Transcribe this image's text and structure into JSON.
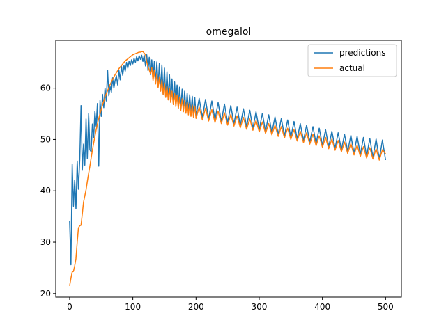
{
  "chart_data": {
    "type": "line",
    "title": "omegalol",
    "xlabel": "",
    "ylabel": "",
    "xlim": [
      -22,
      525
    ],
    "ylim": [
      19.3,
      69.3
    ],
    "x_ticks": [
      0,
      100,
      200,
      300,
      400,
      500
    ],
    "y_ticks": [
      20,
      30,
      40,
      50,
      60
    ],
    "grid": false,
    "legend_position": "top-right",
    "colors": {
      "predictions": "#1f77b4",
      "actual": "#ff7f0e"
    },
    "series": [
      {
        "name": "predictions",
        "color": "#1f77b4",
        "points": [
          [
            0,
            34.1
          ],
          [
            2,
            25.6
          ],
          [
            4,
            45.2
          ],
          [
            6,
            37.0
          ],
          [
            8,
            42.1
          ],
          [
            10,
            36.5
          ],
          [
            12,
            45.8
          ],
          [
            14,
            40.3
          ],
          [
            16,
            46.2
          ],
          [
            18,
            56.6
          ],
          [
            20,
            44.0
          ],
          [
            22,
            49.1
          ],
          [
            24,
            45.0
          ],
          [
            26,
            54.0
          ],
          [
            28,
            46.3
          ],
          [
            30,
            55.0
          ],
          [
            32,
            48.0
          ],
          [
            34,
            47.6
          ],
          [
            36,
            53.0
          ],
          [
            38,
            50.3
          ],
          [
            40,
            55.5
          ],
          [
            42,
            52.6
          ],
          [
            44,
            57.0
          ],
          [
            46,
            44.8
          ],
          [
            48,
            57.6
          ],
          [
            50,
            54.5
          ],
          [
            52,
            58.8
          ],
          [
            54,
            56.2
          ],
          [
            56,
            60.0
          ],
          [
            58,
            57.5
          ],
          [
            60,
            63.5
          ],
          [
            62,
            58.5
          ],
          [
            64,
            60.3
          ],
          [
            66,
            59.2
          ],
          [
            68,
            62.0
          ],
          [
            70,
            60.0
          ],
          [
            72,
            61.5
          ],
          [
            74,
            62.4
          ],
          [
            76,
            60.6
          ],
          [
            78,
            63.4
          ],
          [
            80,
            61.6
          ],
          [
            82,
            64.2
          ],
          [
            84,
            62.5
          ],
          [
            86,
            64.4
          ],
          [
            88,
            63.3
          ],
          [
            90,
            65.0
          ],
          [
            92,
            63.9
          ],
          [
            94,
            65.2
          ],
          [
            96,
            64.4
          ],
          [
            98,
            65.5
          ],
          [
            100,
            64.7
          ],
          [
            102,
            65.8
          ],
          [
            104,
            65.0
          ],
          [
            106,
            66.1
          ],
          [
            108,
            65.3
          ],
          [
            110,
            66.3
          ],
          [
            112,
            65.6
          ],
          [
            114,
            66.4
          ],
          [
            116,
            65.2
          ],
          [
            118,
            66.4
          ],
          [
            120,
            64.3
          ],
          [
            122,
            66.5
          ],
          [
            124,
            63.4
          ],
          [
            126,
            66.0
          ],
          [
            128,
            62.6
          ],
          [
            130,
            65.5
          ],
          [
            132,
            61.8
          ],
          [
            134,
            65.2
          ],
          [
            136,
            61.1
          ],
          [
            138,
            65.1
          ],
          [
            140,
            60.3
          ],
          [
            142,
            64.8
          ],
          [
            144,
            59.5
          ],
          [
            146,
            64.5
          ],
          [
            148,
            58.8
          ],
          [
            150,
            63.9
          ],
          [
            152,
            58.2
          ],
          [
            154,
            63.2
          ],
          [
            156,
            57.8
          ],
          [
            158,
            62.6
          ],
          [
            160,
            57.4
          ],
          [
            162,
            61.8
          ],
          [
            164,
            57.1
          ],
          [
            166,
            61.2
          ],
          [
            168,
            56.8
          ],
          [
            170,
            60.6
          ],
          [
            172,
            56.5
          ],
          [
            174,
            60.2
          ],
          [
            176,
            56.2
          ],
          [
            178,
            59.8
          ],
          [
            180,
            55.9
          ],
          [
            182,
            59.4
          ],
          [
            184,
            55.6
          ],
          [
            186,
            59.0
          ],
          [
            188,
            55.3
          ],
          [
            190,
            58.7
          ],
          [
            192,
            55.1
          ],
          [
            194,
            58.4
          ],
          [
            196,
            54.8
          ],
          [
            198,
            58.2
          ],
          [
            200,
            54.6
          ],
          [
            205,
            58.0
          ],
          [
            210,
            54.3
          ],
          [
            215,
            57.8
          ],
          [
            220,
            54.0
          ],
          [
            225,
            57.5
          ],
          [
            230,
            53.8
          ],
          [
            235,
            57.2
          ],
          [
            240,
            53.5
          ],
          [
            245,
            56.9
          ],
          [
            250,
            53.3
          ],
          [
            255,
            56.6
          ],
          [
            260,
            53.0
          ],
          [
            265,
            56.3
          ],
          [
            270,
            52.7
          ],
          [
            275,
            56.0
          ],
          [
            280,
            52.5
          ],
          [
            285,
            55.7
          ],
          [
            290,
            52.2
          ],
          [
            295,
            55.4
          ],
          [
            300,
            51.9
          ],
          [
            305,
            55.1
          ],
          [
            310,
            51.6
          ],
          [
            315,
            54.8
          ],
          [
            320,
            51.3
          ],
          [
            325,
            54.4
          ],
          [
            330,
            51.0
          ],
          [
            335,
            54.1
          ],
          [
            340,
            50.7
          ],
          [
            345,
            53.8
          ],
          [
            350,
            50.4
          ],
          [
            355,
            53.5
          ],
          [
            360,
            50.1
          ],
          [
            365,
            53.1
          ],
          [
            370,
            49.8
          ],
          [
            375,
            52.8
          ],
          [
            380,
            49.5
          ],
          [
            385,
            52.5
          ],
          [
            390,
            49.2
          ],
          [
            395,
            52.2
          ],
          [
            400,
            48.9
          ],
          [
            405,
            51.9
          ],
          [
            410,
            48.6
          ],
          [
            415,
            51.6
          ],
          [
            420,
            48.3
          ],
          [
            425,
            51.3
          ],
          [
            430,
            48.0
          ],
          [
            435,
            51.0
          ],
          [
            440,
            47.7
          ],
          [
            445,
            50.8
          ],
          [
            450,
            47.4
          ],
          [
            455,
            50.6
          ],
          [
            460,
            47.1
          ],
          [
            465,
            50.4
          ],
          [
            470,
            46.8
          ],
          [
            475,
            50.2
          ],
          [
            480,
            46.5
          ],
          [
            485,
            50.1
          ],
          [
            490,
            46.2
          ],
          [
            495,
            49.9
          ],
          [
            500,
            46.0
          ]
        ]
      },
      {
        "name": "actual",
        "color": "#ff7f0e",
        "points": [
          [
            0,
            21.5
          ],
          [
            2,
            23.0
          ],
          [
            4,
            24.2
          ],
          [
            6,
            24.3
          ],
          [
            8,
            25.4
          ],
          [
            10,
            26.8
          ],
          [
            12,
            30.0
          ],
          [
            14,
            32.8
          ],
          [
            16,
            33.2
          ],
          [
            18,
            33.3
          ],
          [
            20,
            35.5
          ],
          [
            22,
            37.8
          ],
          [
            24,
            39.0
          ],
          [
            26,
            40.2
          ],
          [
            28,
            41.8
          ],
          [
            30,
            43.4
          ],
          [
            32,
            44.8
          ],
          [
            34,
            46.4
          ],
          [
            36,
            47.9
          ],
          [
            38,
            49.3
          ],
          [
            40,
            50.6
          ],
          [
            42,
            51.9
          ],
          [
            44,
            53.0
          ],
          [
            46,
            54.1
          ],
          [
            48,
            55.0
          ],
          [
            50,
            55.9
          ],
          [
            52,
            56.7
          ],
          [
            54,
            57.5
          ],
          [
            56,
            58.2
          ],
          [
            58,
            58.9
          ],
          [
            60,
            59.5
          ],
          [
            62,
            60.1
          ],
          [
            64,
            60.7
          ],
          [
            66,
            61.2
          ],
          [
            68,
            61.7
          ],
          [
            70,
            62.2
          ],
          [
            72,
            62.6
          ],
          [
            74,
            63.0
          ],
          [
            76,
            63.4
          ],
          [
            78,
            63.8
          ],
          [
            80,
            64.1
          ],
          [
            82,
            64.4
          ],
          [
            84,
            64.7
          ],
          [
            86,
            65.0
          ],
          [
            88,
            65.3
          ],
          [
            90,
            65.5
          ],
          [
            92,
            65.7
          ],
          [
            94,
            65.9
          ],
          [
            96,
            66.1
          ],
          [
            98,
            66.3
          ],
          [
            100,
            66.5
          ],
          [
            102,
            66.6
          ],
          [
            104,
            66.7
          ],
          [
            106,
            66.8
          ],
          [
            108,
            66.9
          ],
          [
            110,
            67.0
          ],
          [
            112,
            67.0
          ],
          [
            114,
            67.1
          ],
          [
            116,
            67.1
          ],
          [
            118,
            66.8
          ],
          [
            120,
            66.5
          ],
          [
            122,
            65.0
          ],
          [
            124,
            64.2
          ],
          [
            126,
            63.5
          ],
          [
            128,
            62.8
          ],
          [
            130,
            64.0
          ],
          [
            132,
            61.5
          ],
          [
            134,
            63.4
          ],
          [
            136,
            60.8
          ],
          [
            138,
            62.8
          ],
          [
            140,
            60.1
          ],
          [
            142,
            62.2
          ],
          [
            144,
            59.4
          ],
          [
            146,
            61.6
          ],
          [
            148,
            58.8
          ],
          [
            150,
            61.0
          ],
          [
            152,
            58.2
          ],
          [
            154,
            60.4
          ],
          [
            156,
            57.7
          ],
          [
            158,
            59.9
          ],
          [
            160,
            57.2
          ],
          [
            162,
            59.4
          ],
          [
            164,
            56.8
          ],
          [
            166,
            59.0
          ],
          [
            168,
            56.4
          ],
          [
            170,
            58.6
          ],
          [
            172,
            56.0
          ],
          [
            174,
            58.2
          ],
          [
            176,
            55.7
          ],
          [
            178,
            57.9
          ],
          [
            180,
            55.4
          ],
          [
            182,
            57.6
          ],
          [
            184,
            55.1
          ],
          [
            186,
            57.3
          ],
          [
            188,
            54.8
          ],
          [
            190,
            57.0
          ],
          [
            192,
            54.5
          ],
          [
            194,
            56.7
          ],
          [
            196,
            54.3
          ],
          [
            198,
            56.5
          ],
          [
            200,
            54.1
          ],
          [
            205,
            56.3
          ],
          [
            210,
            53.8
          ],
          [
            215,
            56.1
          ],
          [
            220,
            53.6
          ],
          [
            225,
            55.8
          ],
          [
            230,
            53.3
          ],
          [
            235,
            55.5
          ],
          [
            240,
            53.1
          ],
          [
            245,
            55.2
          ],
          [
            250,
            52.8
          ],
          [
            255,
            54.9
          ],
          [
            260,
            52.6
          ],
          [
            265,
            54.6
          ],
          [
            270,
            52.3
          ],
          [
            275,
            54.3
          ],
          [
            280,
            52.0
          ],
          [
            285,
            54.0
          ],
          [
            290,
            51.8
          ],
          [
            295,
            53.7
          ],
          [
            300,
            51.5
          ],
          [
            305,
            53.4
          ],
          [
            310,
            51.2
          ],
          [
            315,
            53.1
          ],
          [
            320,
            50.9
          ],
          [
            325,
            52.8
          ],
          [
            330,
            50.6
          ],
          [
            335,
            52.5
          ],
          [
            340,
            50.3
          ],
          [
            345,
            52.2
          ],
          [
            350,
            50.0
          ],
          [
            355,
            51.9
          ],
          [
            360,
            49.7
          ],
          [
            365,
            51.6
          ],
          [
            370,
            49.4
          ],
          [
            375,
            51.3
          ],
          [
            380,
            49.1
          ],
          [
            385,
            51.0
          ],
          [
            390,
            48.8
          ],
          [
            395,
            50.7
          ],
          [
            400,
            48.5
          ],
          [
            405,
            50.4
          ],
          [
            410,
            48.2
          ],
          [
            415,
            50.1
          ],
          [
            420,
            47.9
          ],
          [
            425,
            49.8
          ],
          [
            430,
            47.6
          ],
          [
            435,
            49.5
          ],
          [
            440,
            47.3
          ],
          [
            445,
            49.2
          ],
          [
            450,
            47.0
          ],
          [
            455,
            48.9
          ],
          [
            460,
            46.7
          ],
          [
            465,
            48.6
          ],
          [
            470,
            46.4
          ],
          [
            475,
            48.4
          ],
          [
            480,
            46.2
          ],
          [
            485,
            48.2
          ],
          [
            490,
            46.0
          ],
          [
            495,
            48.0
          ],
          [
            500,
            47.2
          ]
        ]
      }
    ]
  }
}
